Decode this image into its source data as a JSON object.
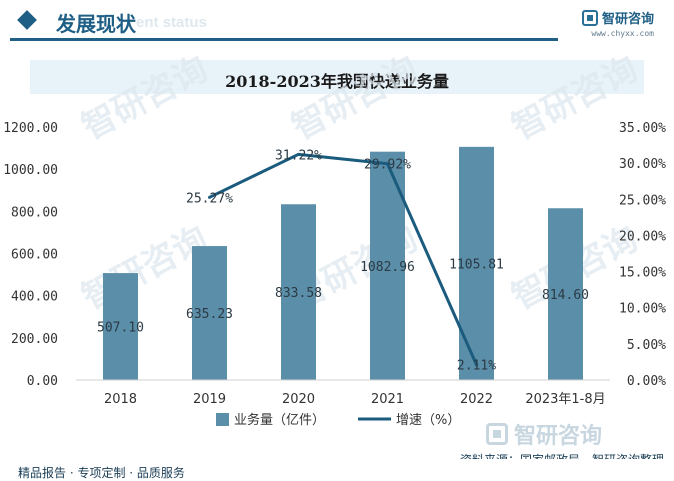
{
  "header": {
    "section_title": "发展现状",
    "section_watermark": "ent status",
    "brand_name": "智研咨询",
    "brand_url": "www.chyxx.com"
  },
  "chart_data": {
    "type": "bar",
    "title": "2018-2023年我国快递业务量",
    "categories": [
      "2018",
      "2019",
      "2020",
      "2021",
      "2022",
      "2023年1-8月"
    ],
    "series": [
      {
        "name": "业务量（亿件）",
        "type": "bar",
        "axis": "left",
        "color": "#5b8ea8",
        "values": [
          507.1,
          635.23,
          833.58,
          1082.96,
          1105.81,
          814.6
        ],
        "labels": [
          "507.10",
          "635.23",
          "833.58",
          "1082.96",
          "1105.81",
          "814.60"
        ]
      },
      {
        "name": "增速（%）",
        "type": "line",
        "axis": "right",
        "color": "#1a5b7e",
        "values": [
          null,
          25.27,
          31.22,
          29.92,
          2.11,
          null
        ],
        "labels": [
          "",
          "25.27%",
          "31.22%",
          "29.92%",
          "2.11%",
          ""
        ]
      }
    ],
    "y_left": {
      "min": 0,
      "max": 1200,
      "ticks": [
        "0.00",
        "200.00",
        "400.00",
        "600.00",
        "800.00",
        "1000.00",
        "1200.00"
      ]
    },
    "y_right": {
      "min": 0,
      "max": 35,
      "ticks": [
        "0.00%",
        "5.00%",
        "10.00%",
        "15.00%",
        "20.00%",
        "25.00%",
        "30.00%",
        "35.00%"
      ]
    },
    "grid": false,
    "legend_position": "bottom"
  },
  "watermark": {
    "text": "智研咨询",
    "color": "#dde7ee"
  },
  "footer": {
    "left_text": "精品报告 · 专项定制 · 品质服务",
    "source_text": "资料来源：国家邮政局、智研咨询整理",
    "wm_text": "智研咨询"
  }
}
